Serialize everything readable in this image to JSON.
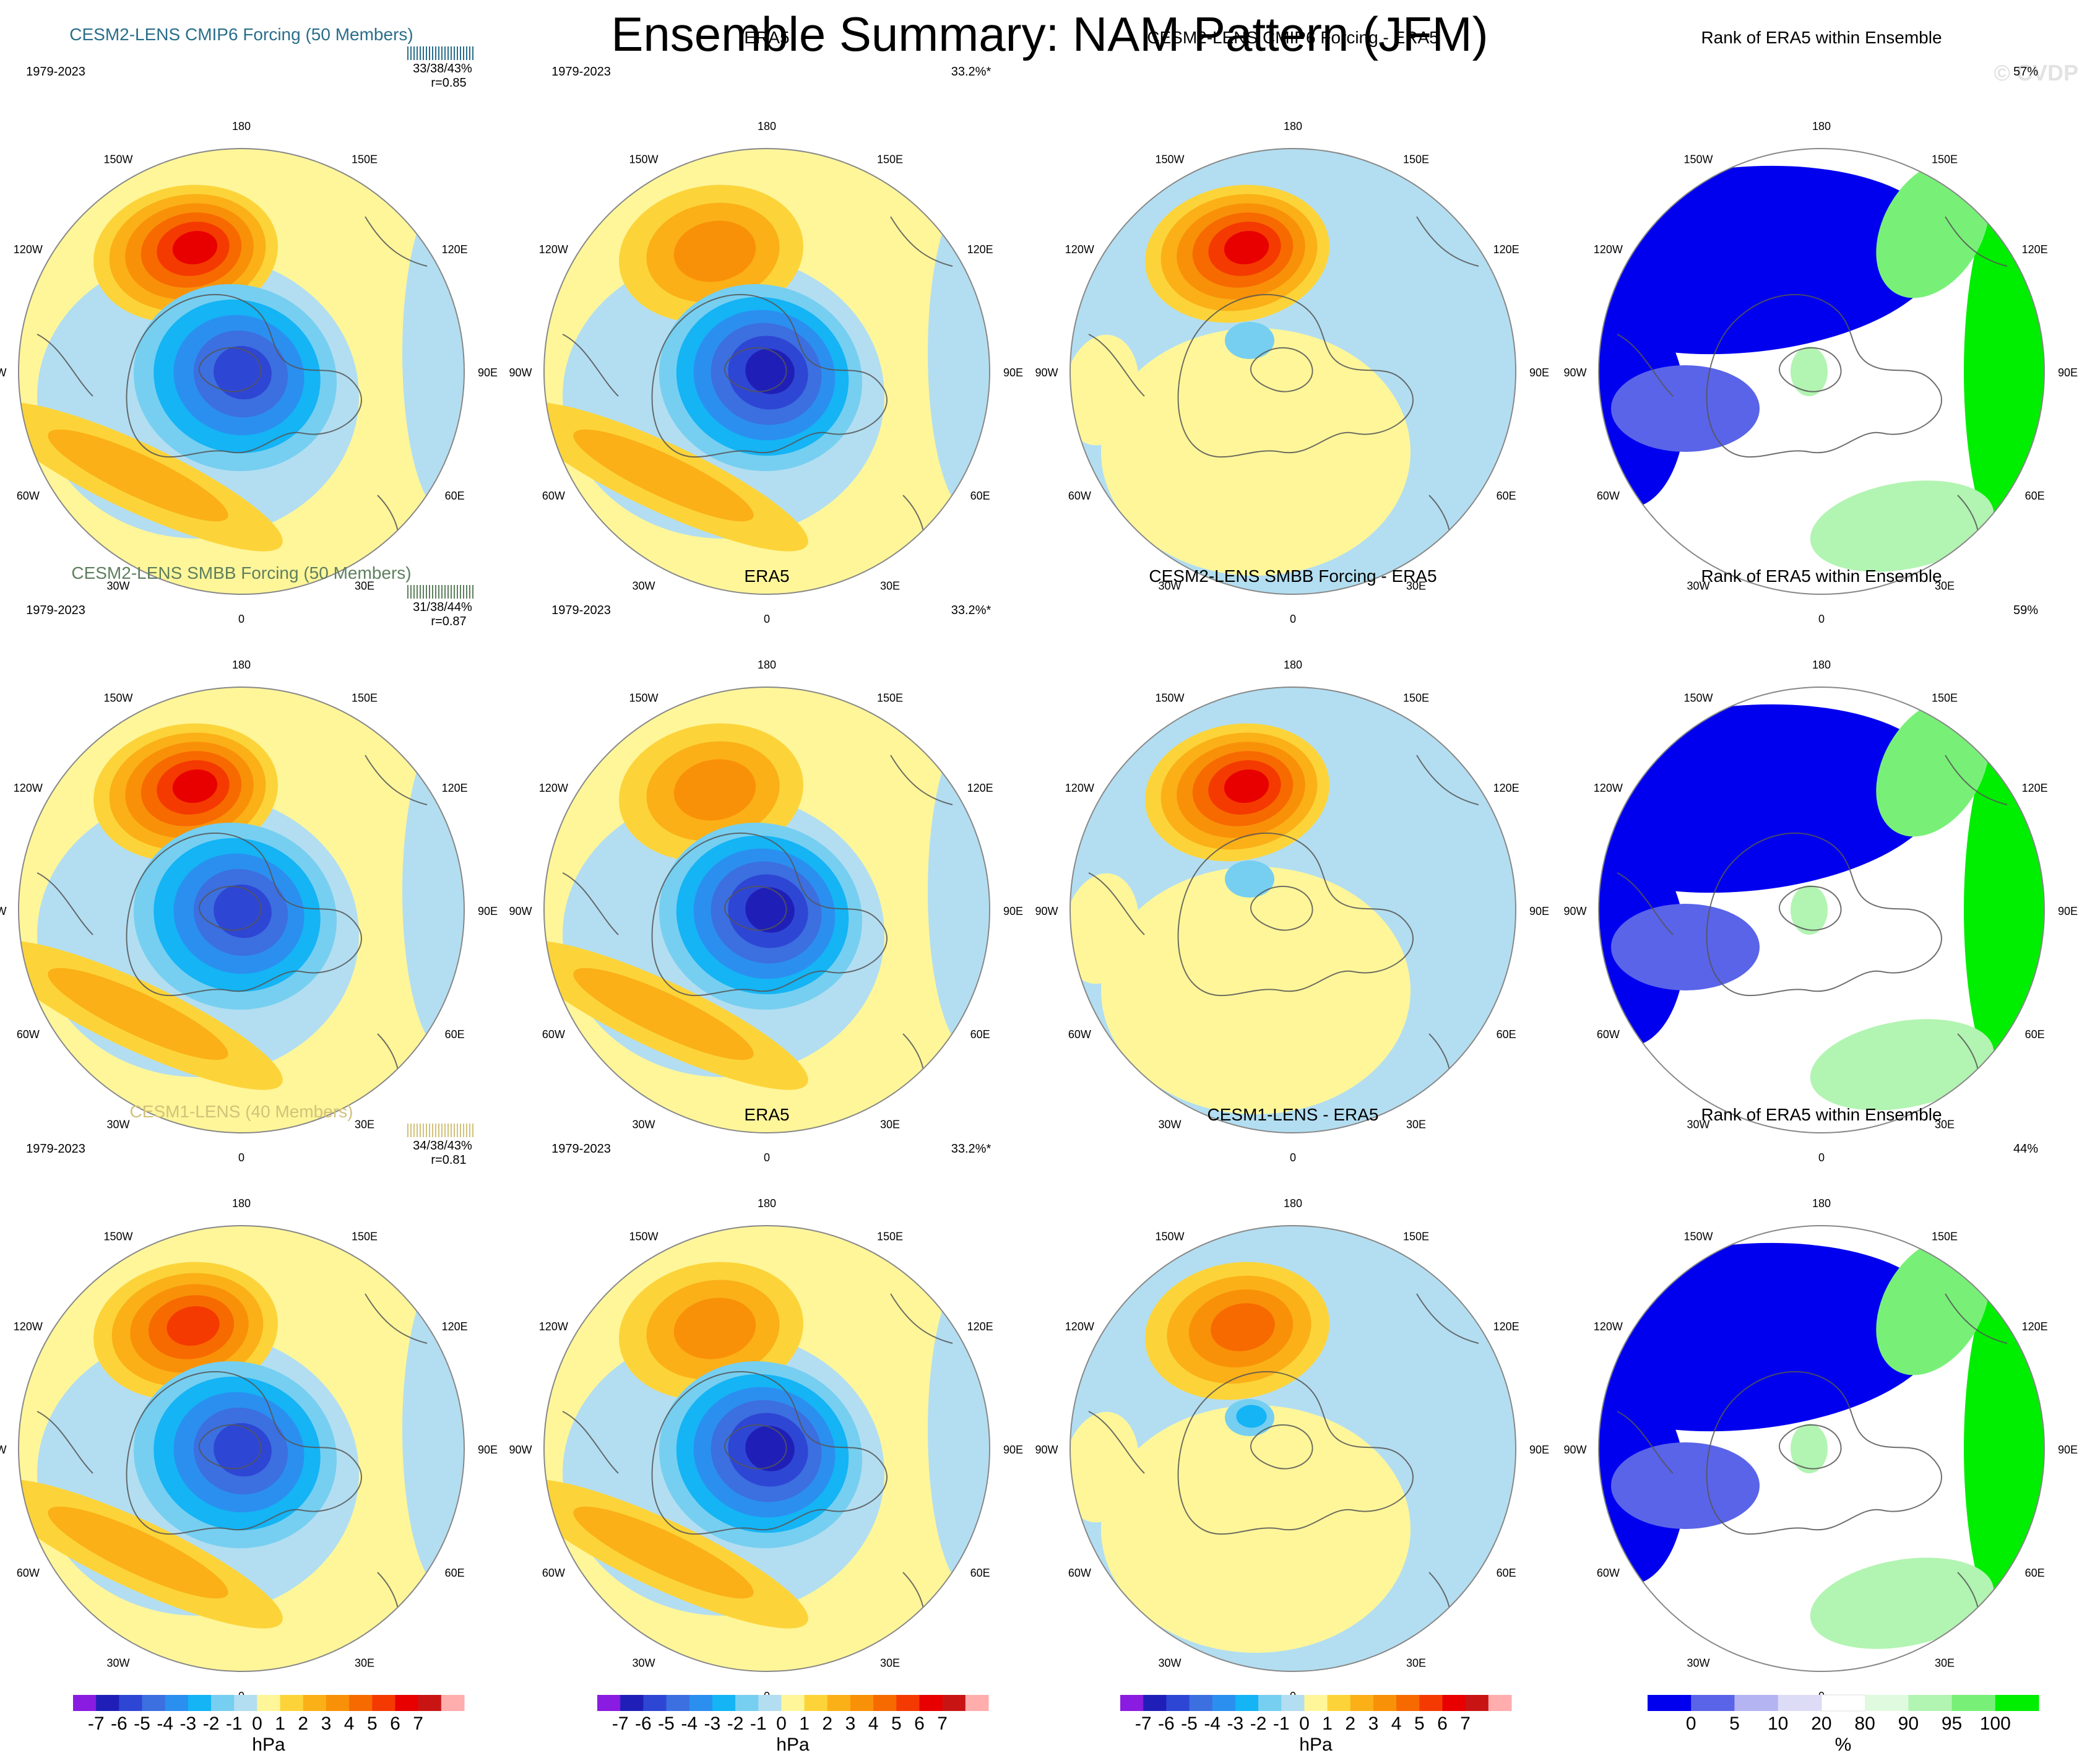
{
  "title": "Ensemble Summary: NAM Pattern (JFM)",
  "watermark": "© CVDP",
  "colors": {
    "cesm2_cmip6": "#2a6e8a",
    "cesm2_smbb": "#5e7f5e",
    "cesm1": "#d2c27a",
    "neg": [
      "#8a1be0",
      "#1f1fb8",
      "#2e46d4",
      "#3c6fe0",
      "#2b8ff0",
      "#14b4f5",
      "#76cff0",
      "#b3def1"
    ],
    "pos": [
      "#fff69a",
      "#fcd43a",
      "#fbb018",
      "#f99108",
      "#f76a00",
      "#f43a00",
      "#e80000",
      "#c91414",
      "#ffadad"
    ],
    "rank": [
      "#0000ee",
      "#5a64e8",
      "#b4b4f2",
      "#dcdcf6",
      "#ffffff",
      "#e0fae0",
      "#b2f4b2",
      "#78f078",
      "#00ee00"
    ],
    "land_outline": "#555555"
  },
  "chart_data": {
    "type": "polar-contour",
    "projection": "north-polar-stereographic",
    "region": "Northern Hemisphere 20N-90N",
    "variable": "Sea level pressure regression (NAM pattern)",
    "season": "JFM",
    "period": "1979-2023",
    "lon_labels": [
      "180",
      "150E",
      "120E",
      "90E",
      "60E",
      "30E",
      "0",
      "30W",
      "60W",
      "90W",
      "120W",
      "150W"
    ],
    "rows": [
      {
        "model": "CESM2-LENS CMIP6 Forcing (50 Members)",
        "model_short": "CESM2-LENS CMIP6 Forcing",
        "color_key": "cesm2_cmip6",
        "period": "1979-2023",
        "pct_stats": "33/38/43%",
        "r": "r=0.85",
        "diff_title": "CESM2-LENS CMIP6 Forcing - ERA5",
        "obs_title": "ERA5",
        "obs_pct": "33.2%*",
        "rank_title": "Rank of ERA5 within Ensemble",
        "rank_pct": "57%",
        "model_peak_pos_hPa": 6,
        "model_peak_neg_hPa": -5,
        "obs_peak_pos_hPa": 3,
        "obs_peak_neg_hPa": -6,
        "diff_peak_pos_hPa": 6,
        "diff_peak_neg_hPa": -1
      },
      {
        "model": "CESM2-LENS SMBB Forcing (50 Members)",
        "model_short": "CESM2-LENS SMBB Forcing",
        "color_key": "cesm2_smbb",
        "period": "1979-2023",
        "pct_stats": "31/38/44%",
        "r": "r=0.87",
        "diff_title": "CESM2-LENS SMBB Forcing - ERA5",
        "obs_title": "ERA5",
        "obs_pct": "33.2%*",
        "rank_title": "Rank of ERA5 within Ensemble",
        "rank_pct": "59%",
        "model_peak_pos_hPa": 6,
        "model_peak_neg_hPa": -5,
        "obs_peak_pos_hPa": 3,
        "obs_peak_neg_hPa": -6,
        "diff_peak_pos_hPa": 6,
        "diff_peak_neg_hPa": -1
      },
      {
        "model": "CESM1-LENS (40 Members)",
        "model_short": "CESM1-LENS",
        "color_key": "cesm1",
        "period": "1979-2023",
        "pct_stats": "34/38/43%",
        "r": "r=0.81",
        "diff_title": "CESM1-LENS - ERA5",
        "obs_title": "ERA5",
        "obs_pct": "33.2%*",
        "rank_title": "Rank of ERA5 within Ensemble",
        "rank_pct": "44%",
        "model_peak_pos_hPa": 5,
        "model_peak_neg_hPa": -5,
        "obs_peak_pos_hPa": 3,
        "obs_peak_neg_hPa": -6,
        "diff_peak_pos_hPa": 4,
        "diff_peak_neg_hPa": -2
      }
    ],
    "colorbars": [
      {
        "units": "hPa",
        "ticks": [
          "-7",
          "-6",
          "-5",
          "-4",
          "-3",
          "-2",
          "-1",
          "0",
          "1",
          "2",
          "3",
          "4",
          "5",
          "6",
          "7"
        ]
      },
      {
        "units": "hPa",
        "ticks": [
          "-7",
          "-6",
          "-5",
          "-4",
          "-3",
          "-2",
          "-1",
          "0",
          "1",
          "2",
          "3",
          "4",
          "5",
          "6",
          "7"
        ]
      },
      {
        "units": "hPa",
        "ticks": [
          "-7",
          "-6",
          "-5",
          "-4",
          "-3",
          "-2",
          "-1",
          "0",
          "1",
          "2",
          "3",
          "4",
          "5",
          "6",
          "7"
        ]
      },
      {
        "units": "%",
        "ticks": [
          "0",
          "5",
          "10",
          "20",
          "80",
          "90",
          "95",
          "100"
        ]
      }
    ]
  }
}
